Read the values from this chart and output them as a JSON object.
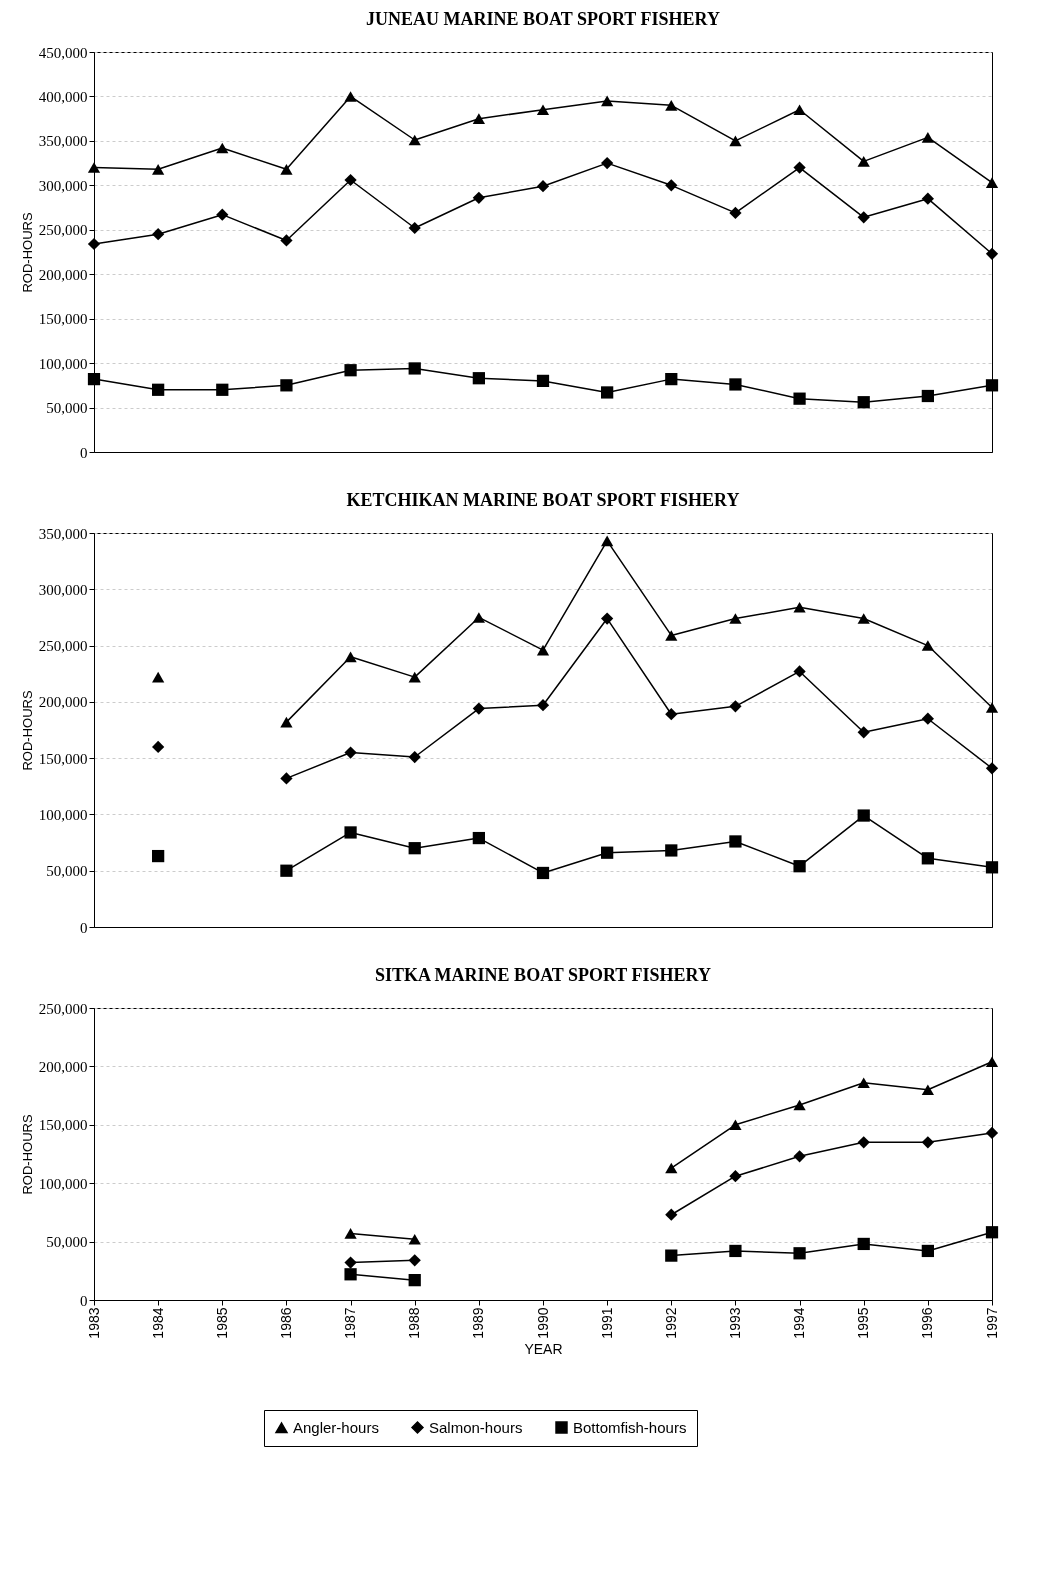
{
  "chart_data": [
    {
      "type": "line",
      "title": "JUNEAU MARINE BOAT SPORT FISHERY",
      "ylabel": "ROD-HOURS",
      "categories": [
        "1983",
        "1984",
        "1985",
        "1986",
        "1987",
        "1988",
        "1989",
        "1990",
        "1991",
        "1992",
        "1993",
        "1994",
        "1995",
        "1996",
        "1997"
      ],
      "ylim": [
        0,
        450000
      ],
      "yticks": [
        {
          "value": 0,
          "label": "0"
        },
        {
          "value": 50000,
          "label": "50,000"
        },
        {
          "value": 100000,
          "label": "100,000"
        },
        {
          "value": 150000,
          "label": "150,000"
        },
        {
          "value": 200000,
          "label": "200,000"
        },
        {
          "value": 250000,
          "label": "250,000"
        },
        {
          "value": 300000,
          "label": "300,000"
        },
        {
          "value": 350000,
          "label": "350,000"
        },
        {
          "value": 400000,
          "label": "400,000"
        },
        {
          "value": 450000,
          "label": "450,000"
        }
      ],
      "grid": "y",
      "tick_labels": "y",
      "line_style": "solid",
      "series": [
        {
          "color": "#000000",
          "marker": "triangle",
          "values": [
            320000,
            318000,
            342000,
            318000,
            400000,
            351000,
            375000,
            385000,
            395000,
            390000,
            350000,
            385000,
            327000,
            354000,
            303000
          ]
        },
        {
          "color": "#000000",
          "marker": "diamond",
          "values": [
            234000,
            245000,
            267000,
            238000,
            306000,
            252000,
            286000,
            299000,
            325000,
            300000,
            269000,
            320000,
            264000,
            285000,
            223000
          ]
        },
        {
          "color": "#000000",
          "marker": "square",
          "values": [
            82000,
            70000,
            70000,
            75000,
            92000,
            94000,
            83000,
            80000,
            67000,
            82000,
            76000,
            60000,
            56000,
            63000,
            75000
          ]
        }
      ]
    },
    {
      "type": "line",
      "title": "KETCHIKAN MARINE BOAT SPORT FISHERY",
      "ylabel": "ROD-HOURS",
      "categories": [
        "1983",
        "1984",
        "1985",
        "1986",
        "1987",
        "1988",
        "1989",
        "1990",
        "1991",
        "1992",
        "1993",
        "1994",
        "1995",
        "1996",
        "1997"
      ],
      "ylim": [
        0,
        350000
      ],
      "yticks": [
        {
          "value": 0,
          "label": "0"
        },
        {
          "value": 50000,
          "label": "50,000"
        },
        {
          "value": 100000,
          "label": "100,000"
        },
        {
          "value": 150000,
          "label": "150,000"
        },
        {
          "value": 200000,
          "label": "200,000"
        },
        {
          "value": 250000,
          "label": "250,000"
        },
        {
          "value": 300000,
          "label": "300,000"
        },
        {
          "value": 350000,
          "label": "350,000"
        }
      ],
      "grid": "y",
      "tick_labels": "y",
      "line_style": "solid",
      "series": [
        {
          "color": "#000000",
          "marker": "triangle",
          "values": [
            null,
            222000,
            null,
            182000,
            240000,
            222000,
            275000,
            246000,
            343000,
            259000,
            274000,
            284000,
            274000,
            250000,
            195000
          ]
        },
        {
          "color": "#000000",
          "marker": "diamond",
          "values": [
            null,
            160000,
            null,
            132000,
            155000,
            151000,
            194000,
            197000,
            274000,
            189000,
            196000,
            227000,
            173000,
            185000,
            141000
          ]
        },
        {
          "color": "#000000",
          "marker": "square",
          "values": [
            null,
            63000,
            null,
            50000,
            84000,
            70000,
            79000,
            48000,
            66000,
            68000,
            76000,
            54000,
            99000,
            61000,
            53000
          ]
        }
      ]
    },
    {
      "type": "line",
      "title": "SITKA MARINE BOAT SPORT FISHERY",
      "xlabel": "YEAR",
      "ylabel": "ROD-HOURS",
      "categories": [
        "1983",
        "1984",
        "1985",
        "1986",
        "1987",
        "1988",
        "1989",
        "1990",
        "1991",
        "1992",
        "1993",
        "1994",
        "1995",
        "1996",
        "1997"
      ],
      "ylim": [
        0,
        250000
      ],
      "yticks": [
        {
          "value": 0,
          "label": "0"
        },
        {
          "value": 50000,
          "label": "50,000"
        },
        {
          "value": 100000,
          "label": "100,000"
        },
        {
          "value": 150000,
          "label": "150,000"
        },
        {
          "value": 200000,
          "label": "200,000"
        },
        {
          "value": 250000,
          "label": "250,000"
        }
      ],
      "grid": "y",
      "legend": "bottom",
      "line_style": "solid",
      "series": [
        {
          "name": "Angler-hours",
          "color": "#000000",
          "marker": "triangle",
          "values": [
            null,
            null,
            null,
            null,
            57000,
            52000,
            null,
            null,
            null,
            113000,
            150000,
            167000,
            186000,
            180000,
            204000
          ]
        },
        {
          "name": "Salmon-hours",
          "color": "#000000",
          "marker": "diamond",
          "values": [
            null,
            null,
            null,
            null,
            32000,
            34000,
            null,
            null,
            null,
            73000,
            106000,
            123000,
            135000,
            135000,
            143000
          ]
        },
        {
          "name": "Bottomfish-hours",
          "color": "#000000",
          "marker": "square",
          "values": [
            null,
            null,
            null,
            null,
            22000,
            17000,
            null,
            null,
            null,
            38000,
            42000,
            40000,
            48000,
            42000,
            58000
          ]
        }
      ]
    }
  ]
}
